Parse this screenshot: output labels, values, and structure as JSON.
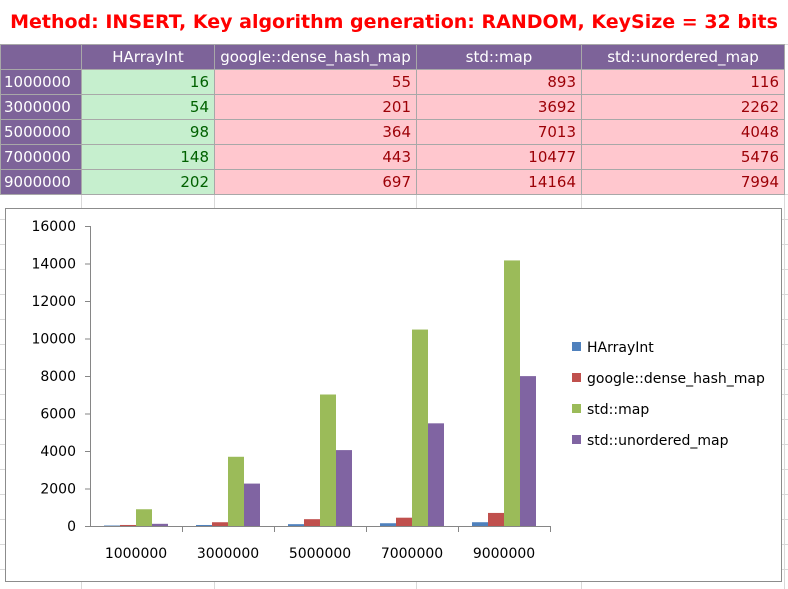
{
  "title": "Method: INSERT, Key algorithm generation: RANDOM, KeySize = 32 bits",
  "table": {
    "headers": [
      "",
      "HArrayInt",
      "google::dense_hash_map",
      "std::map",
      "std::unordered_map"
    ],
    "rows": [
      [
        "1000000",
        "16",
        "55",
        "893",
        "116"
      ],
      [
        "3000000",
        "54",
        "201",
        "3692",
        "2262"
      ],
      [
        "5000000",
        "98",
        "364",
        "7013",
        "4048"
      ],
      [
        "7000000",
        "148",
        "443",
        "10477",
        "5476"
      ],
      [
        "9000000",
        "202",
        "697",
        "14164",
        "7994"
      ]
    ]
  },
  "chart_data": {
    "type": "bar",
    "categories": [
      "1000000",
      "3000000",
      "5000000",
      "7000000",
      "9000000"
    ],
    "series": [
      {
        "name": "HArrayInt",
        "values": [
          16,
          54,
          98,
          148,
          202
        ],
        "color": "#4f81bd"
      },
      {
        "name": "google::dense_hash_map",
        "values": [
          55,
          201,
          364,
          443,
          697
        ],
        "color": "#c0504d"
      },
      {
        "name": "std::map",
        "values": [
          893,
          3692,
          7013,
          10477,
          14164
        ],
        "color": "#9bbb59"
      },
      {
        "name": "std::unordered_map",
        "values": [
          116,
          2262,
          4048,
          5476,
          7994
        ],
        "color": "#8064a2"
      }
    ],
    "yticks": [
      "0",
      "2000",
      "4000",
      "6000",
      "8000",
      "10000",
      "12000",
      "14000",
      "16000"
    ],
    "ylim": [
      0,
      16000
    ],
    "grid": false,
    "legend": "right"
  },
  "colors": {
    "header_bg": "#7d6399",
    "good_bg": "#c6efce",
    "good_text": "#006100",
    "bad_bg": "#ffc7ce",
    "bad_text": "#9c0006",
    "title": "#ff0000"
  }
}
